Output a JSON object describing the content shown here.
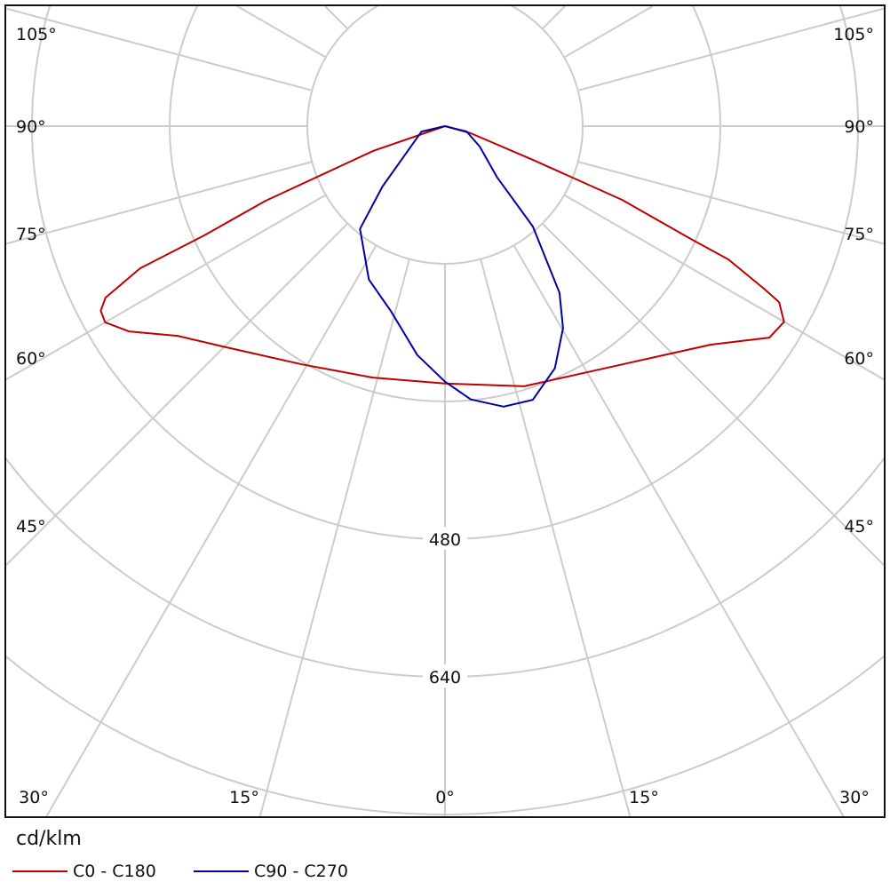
{
  "chart_data": {
    "type": "polar",
    "unit": "cd/klm",
    "angle_labels": [
      "105°",
      "90°",
      "75°",
      "60°",
      "45°",
      "30°",
      "15°",
      "0°"
    ],
    "angle_label_values": [
      105,
      90,
      75,
      60,
      45,
      30,
      15,
      0
    ],
    "ring_labels": [
      "480",
      "640"
    ],
    "ring_values": [
      160,
      320,
      480,
      640,
      800
    ],
    "radial_step_deg": 15,
    "legend": [
      {
        "name": "C0 - C180",
        "color": "#c00000"
      },
      {
        "name": "C90 - C270",
        "color": "#0000a0"
      }
    ],
    "series": [
      {
        "name": "C0 - C180",
        "color": "#c00000",
        "points": [
          [
            -90,
            0
          ],
          [
            -71,
            88
          ],
          [
            -67.4,
            226
          ],
          [
            -65.6,
            307
          ],
          [
            -65,
            391
          ],
          [
            -63.2,
            442
          ],
          [
            -61.8,
            454
          ],
          [
            -60,
            456
          ],
          [
            -57,
            438
          ],
          [
            -51.9,
            395
          ],
          [
            -45.3,
            364
          ],
          [
            -31,
            323
          ],
          [
            -16,
            304
          ],
          [
            0,
            299
          ],
          [
            16.9,
            316
          ],
          [
            36.6,
            345
          ],
          [
            50.6,
            400
          ],
          [
            56.9,
            450
          ],
          [
            60,
            455
          ],
          [
            62.2,
            439
          ],
          [
            63,
            416
          ],
          [
            64.8,
            364
          ],
          [
            65.3,
            317
          ],
          [
            67.4,
            223
          ],
          [
            69,
            109
          ],
          [
            74.6,
            31
          ],
          [
            90,
            0
          ]
        ]
      },
      {
        "name": "C90 - C270",
        "color": "#0000a0",
        "points": [
          [
            -90,
            0
          ],
          [
            -77,
            28
          ],
          [
            -46,
            101
          ],
          [
            -39.6,
            155
          ],
          [
            -26.4,
            199
          ],
          [
            -16.3,
            224
          ],
          [
            -6.9,
            268
          ],
          [
            0,
            297
          ],
          [
            5.4,
            319
          ],
          [
            11.8,
            333
          ],
          [
            17.8,
            334
          ],
          [
            24.4,
            309
          ],
          [
            30.3,
            272
          ],
          [
            34.5,
            235
          ],
          [
            41.2,
            155
          ],
          [
            45.5,
            85
          ],
          [
            59.5,
            47
          ],
          [
            76,
            26
          ],
          [
            90,
            0
          ]
        ]
      }
    ]
  }
}
